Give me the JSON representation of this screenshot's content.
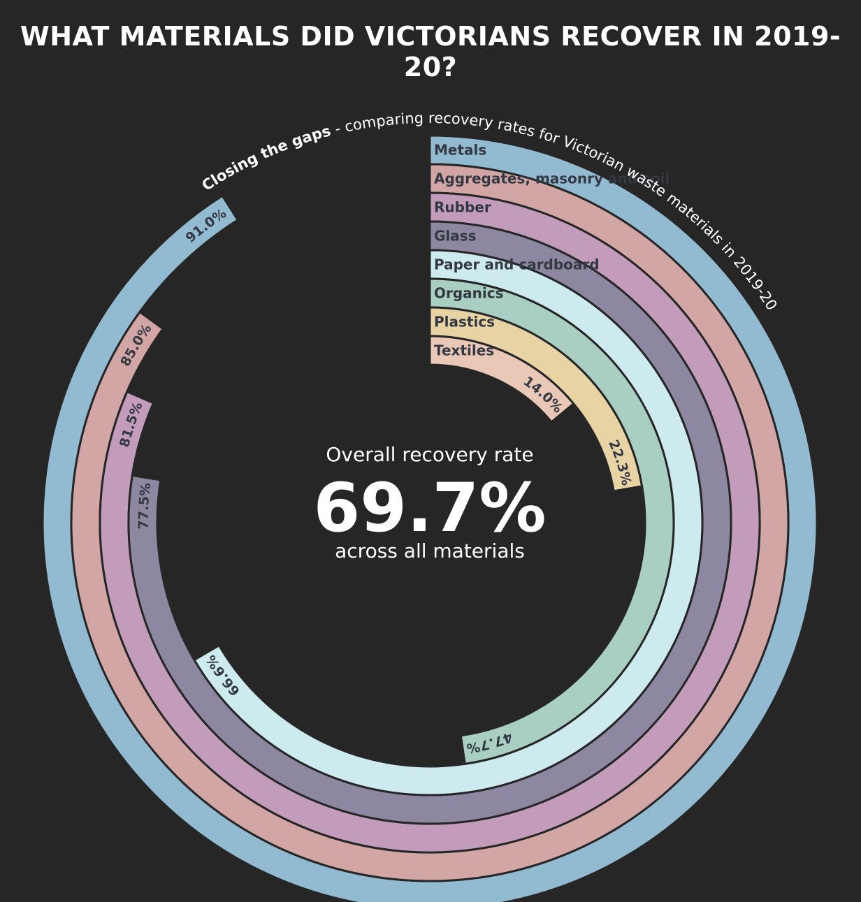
{
  "title": "WHAT MATERIALS DID VICTORIANS RECOVER IN 2019-20?",
  "subtitle": {
    "bold": "Closing the gaps",
    "rest": " - comparing recovery rates for Victorian waste materials in 2019-20"
  },
  "center": {
    "line1": "Overall recovery rate",
    "value": "69.7%",
    "line2": "across all materials"
  },
  "chart_data": {
    "type": "radial-bar",
    "categories": [
      "Metals",
      "Aggregates, masonry and soil",
      "Rubber",
      "Glass",
      "Paper and cardboard",
      "Organics",
      "Plastics",
      "Textiles"
    ],
    "values": [
      91.0,
      85.0,
      81.5,
      77.5,
      66.6,
      47.7,
      22.3,
      14.0
    ],
    "value_labels": [
      "91.0%",
      "85.0%",
      "81.5%",
      "77.5%",
      "66.6%",
      "47.7%",
      "22.3%",
      "14.0%"
    ],
    "colors": [
      "#92bbd1",
      "#d2a6a5",
      "#c29cba",
      "#8d87a2",
      "#cdeaee",
      "#a8cfc2",
      "#e8d3a5",
      "#e9c8b7"
    ],
    "max": 100,
    "overall_rate": 69.7
  }
}
